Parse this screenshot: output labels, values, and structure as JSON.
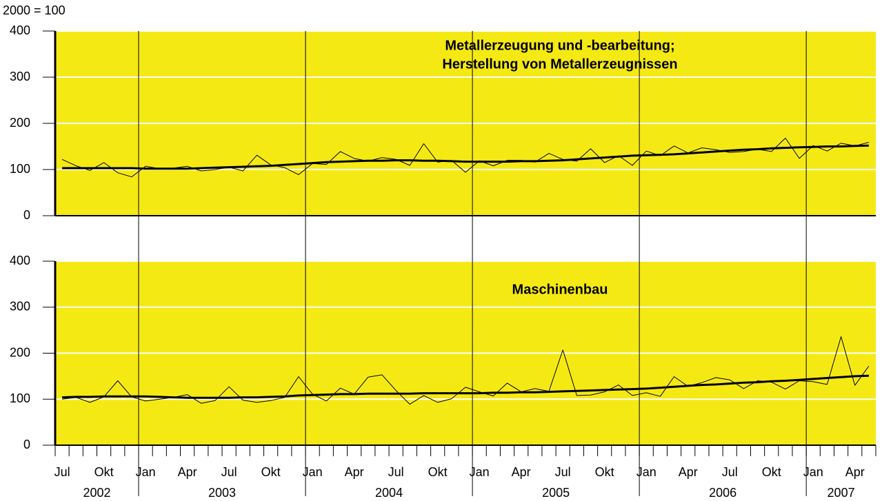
{
  "y_unit_label": "2000 = 100",
  "x_axis": {
    "categories": [
      "Jul",
      null,
      null,
      "Okt",
      null,
      null,
      "Jan",
      null,
      null,
      "Apr",
      null,
      null,
      "Jul",
      null,
      null,
      "Okt",
      null,
      null,
      "Jan",
      null,
      null,
      "Apr",
      null,
      null,
      "Jul",
      null,
      null,
      "Okt",
      null,
      null,
      "Jan",
      null,
      null,
      "Apr",
      null,
      null,
      "Jul",
      null,
      null,
      "Okt",
      null,
      null,
      "Jan",
      null,
      null,
      "Apr",
      null,
      null,
      "Jul",
      null,
      null,
      "Okt",
      null,
      null,
      "Jan",
      null,
      null,
      "Apr",
      null
    ],
    "years": [
      "2002",
      "2003",
      "2004",
      "2005",
      "2006",
      "2007"
    ]
  },
  "chart_data": [
    {
      "type": "line",
      "title": [
        "Metallerzeugung und -bearbeitung;",
        "Herstellung von Metallerzeugnissen"
      ],
      "ylim": [
        0,
        400
      ],
      "yticks": [
        0,
        100,
        200,
        300,
        400
      ],
      "grid": true,
      "background": "#f5e914",
      "series": [
        {
          "color": "#000000",
          "width": 1,
          "values": [
            122,
            108,
            98,
            115,
            93,
            84,
            107,
            102,
            103,
            107,
            97,
            100,
            105,
            97,
            131,
            110,
            104,
            89,
            113,
            111,
            139,
            124,
            118,
            126,
            122,
            109,
            156,
            116,
            120,
            94,
            119,
            108,
            120,
            120,
            116,
            135,
            122,
            118,
            145,
            115,
            130,
            109,
            140,
            130,
            151,
            136,
            147,
            143,
            137,
            139,
            144,
            139,
            168,
            124,
            152,
            140,
            157,
            151,
            159
          ]
        },
        {
          "color": "#000000",
          "width": 3,
          "values": [
            103,
            103,
            103,
            103,
            103,
            103,
            102,
            102,
            102,
            102,
            103,
            104,
            105,
            106,
            107,
            108,
            110,
            112,
            114,
            116,
            117,
            118,
            119,
            119,
            120,
            120,
            119,
            119,
            118,
            117,
            117,
            117,
            117,
            118,
            118,
            119,
            120,
            122,
            124,
            126,
            128,
            130,
            131,
            132,
            133,
            135,
            137,
            139,
            141,
            143,
            144,
            146,
            147,
            148,
            149,
            150,
            150,
            151,
            152
          ]
        }
      ]
    },
    {
      "type": "line",
      "title": [
        "Maschinenbau"
      ],
      "ylim": [
        0,
        400
      ],
      "yticks": [
        0,
        100,
        200,
        300,
        400
      ],
      "grid": true,
      "background": "#f5e914",
      "series": [
        {
          "color": "#000000",
          "width": 1,
          "values": [
            100,
            104,
            93,
            105,
            140,
            105,
            96,
            100,
            104,
            110,
            91,
            97,
            127,
            98,
            93,
            97,
            104,
            149,
            111,
            96,
            124,
            111,
            148,
            153,
            119,
            89,
            108,
            93,
            101,
            126,
            116,
            107,
            135,
            116,
            123,
            117,
            207,
            108,
            109,
            116,
            131,
            108,
            114,
            106,
            149,
            128,
            136,
            147,
            142,
            123,
            140,
            137,
            122,
            140,
            138,
            132,
            236,
            130,
            172
          ]
        },
        {
          "color": "#000000",
          "width": 3,
          "values": [
            104,
            105,
            105,
            106,
            106,
            106,
            106,
            105,
            104,
            103,
            103,
            103,
            103,
            104,
            104,
            105,
            106,
            108,
            109,
            110,
            111,
            111,
            112,
            112,
            112,
            112,
            113,
            113,
            113,
            113,
            113,
            114,
            114,
            115,
            115,
            116,
            117,
            118,
            119,
            120,
            121,
            122,
            123,
            125,
            127,
            129,
            131,
            132,
            134,
            136,
            137,
            139,
            140,
            142,
            144,
            146,
            148,
            150,
            151
          ]
        }
      ]
    }
  ]
}
